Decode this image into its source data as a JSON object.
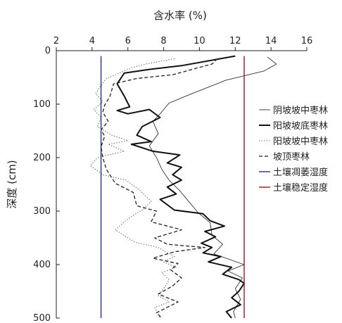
{
  "chart_data": {
    "type": "line",
    "xlabel": "含水率 (%)",
    "ylabel": "深度 (cm)",
    "xlim": [
      2,
      16
    ],
    "ylim": [
      0,
      500
    ],
    "xticks": [
      2,
      4,
      6,
      8,
      10,
      12,
      14,
      16
    ],
    "yticks": [
      0,
      100,
      200,
      300,
      400,
      500
    ],
    "y_inverted": true,
    "x_axis_position": "top",
    "legend_position": "right",
    "grid": false,
    "series": [
      {
        "name": "阴坡坡中枣林",
        "style": "thin-solid",
        "color": "#333333",
        "points": [
          [
            13.8,
            12
          ],
          [
            14.3,
            25
          ],
          [
            13.6,
            38
          ],
          [
            11.5,
            55
          ],
          [
            9.6,
            80
          ],
          [
            8.3,
            98
          ],
          [
            7.8,
            118
          ],
          [
            7.4,
            132
          ],
          [
            7.7,
            155
          ],
          [
            7.2,
            178
          ],
          [
            7.6,
            200
          ],
          [
            7.9,
            222
          ],
          [
            8.3,
            242
          ],
          [
            8.9,
            262
          ],
          [
            9.4,
            282
          ],
          [
            9.9,
            302
          ],
          [
            10.6,
            322
          ],
          [
            10.7,
            345
          ],
          [
            11.3,
            362
          ],
          [
            10.8,
            380
          ],
          [
            12.5,
            400
          ],
          [
            11.6,
            412
          ],
          [
            12.4,
            425
          ],
          [
            12.0,
            445
          ],
          [
            12.3,
            465
          ],
          [
            11.9,
            488
          ],
          [
            12.0,
            500
          ]
        ]
      },
      {
        "name": "阳坡坡底枣林",
        "style": "bold-solid",
        "color": "#111111",
        "points": [
          [
            12.0,
            10
          ],
          [
            9.0,
            28
          ],
          [
            7.2,
            35
          ],
          [
            5.8,
            42
          ],
          [
            5.4,
            62
          ],
          [
            5.8,
            85
          ],
          [
            6.1,
            105
          ],
          [
            5.4,
            112
          ],
          [
            6.0,
            118
          ],
          [
            7.2,
            110
          ],
          [
            7.8,
            125
          ],
          [
            6.8,
            142
          ],
          [
            6.5,
            158
          ],
          [
            7.3,
            170
          ],
          [
            6.2,
            175
          ],
          [
            7.4,
            188
          ],
          [
            8.9,
            195
          ],
          [
            8.2,
            210
          ],
          [
            9.0,
            218
          ],
          [
            8.5,
            232
          ],
          [
            9.0,
            242
          ],
          [
            8.2,
            255
          ],
          [
            8.7,
            268
          ],
          [
            7.8,
            278
          ],
          [
            8.6,
            298
          ],
          [
            10.2,
            305
          ],
          [
            10.6,
            318
          ],
          [
            11.4,
            328
          ],
          [
            10.3,
            338
          ],
          [
            10.9,
            348
          ],
          [
            10.1,
            360
          ],
          [
            10.7,
            368
          ],
          [
            10.2,
            378
          ],
          [
            11.2,
            385
          ],
          [
            10.5,
            395
          ],
          [
            11.8,
            405
          ],
          [
            11.3,
            418
          ],
          [
            12.2,
            428
          ],
          [
            12.5,
            435
          ],
          [
            12.2,
            450
          ],
          [
            11.8,
            462
          ],
          [
            12.3,
            475
          ],
          [
            11.5,
            488
          ],
          [
            11.8,
            500
          ]
        ]
      },
      {
        "name": "阳坡坡中枣林",
        "style": "dotted",
        "color": "#555555",
        "points": [
          [
            8.6,
            15
          ],
          [
            7.0,
            25
          ],
          [
            6.2,
            32
          ],
          [
            5.3,
            45
          ],
          [
            4.8,
            52
          ],
          [
            4.5,
            65
          ],
          [
            4.2,
            80
          ],
          [
            4.6,
            95
          ],
          [
            4.1,
            110
          ],
          [
            4.5,
            125
          ],
          [
            4.3,
            142
          ],
          [
            5.1,
            158
          ],
          [
            6.0,
            168
          ],
          [
            4.9,
            175
          ],
          [
            5.8,
            188
          ],
          [
            4.3,
            200
          ],
          [
            3.9,
            215
          ],
          [
            4.6,
            232
          ],
          [
            5.9,
            242
          ],
          [
            6.7,
            262
          ],
          [
            7.3,
            282
          ],
          [
            6.8,
            298
          ],
          [
            6.2,
            310
          ],
          [
            5.8,
            320
          ],
          [
            5.3,
            335
          ],
          [
            5.9,
            348
          ],
          [
            6.4,
            358
          ],
          [
            7.7,
            368
          ],
          [
            8.6,
            385
          ],
          [
            8.0,
            395
          ],
          [
            8.7,
            405
          ],
          [
            7.9,
            415
          ],
          [
            8.3,
            428
          ],
          [
            8.1,
            440
          ],
          [
            7.7,
            458
          ],
          [
            8.3,
            470
          ],
          [
            7.5,
            480
          ],
          [
            7.8,
            500
          ]
        ]
      },
      {
        "name": "坡顶枣林",
        "style": "dashed",
        "color": "#222222",
        "points": [
          [
            11.0,
            15
          ],
          [
            10.7,
            25
          ],
          [
            8.5,
            45
          ],
          [
            6.5,
            52
          ],
          [
            5.2,
            62
          ],
          [
            5.0,
            85
          ],
          [
            4.7,
            102
          ],
          [
            4.6,
            115
          ],
          [
            4.9,
            132
          ],
          [
            4.5,
            148
          ],
          [
            4.7,
            160
          ],
          [
            4.5,
            180
          ],
          [
            4.6,
            200
          ],
          [
            4.8,
            222
          ],
          [
            5.3,
            248
          ],
          [
            6.3,
            265
          ],
          [
            6.5,
            290
          ],
          [
            7.6,
            300
          ],
          [
            7.3,
            320
          ],
          [
            9.0,
            335
          ],
          [
            7.5,
            350
          ],
          [
            8.2,
            362
          ],
          [
            10.3,
            368
          ],
          [
            8.6,
            376
          ],
          [
            7.4,
            388
          ],
          [
            8.8,
            398
          ],
          [
            8.4,
            410
          ],
          [
            9.0,
            425
          ],
          [
            8.5,
            440
          ],
          [
            7.7,
            455
          ],
          [
            8.8,
            470
          ],
          [
            7.6,
            490
          ],
          [
            7.9,
            500
          ]
        ]
      },
      {
        "name": "土壤凋萎湿度",
        "style": "vertical-line",
        "color": "#2a2f7a",
        "x_value": 4.5
      },
      {
        "name": "土壤稳定湿度",
        "style": "vertical-line",
        "color": "#8a1c24",
        "x_value": 12.5
      }
    ]
  }
}
